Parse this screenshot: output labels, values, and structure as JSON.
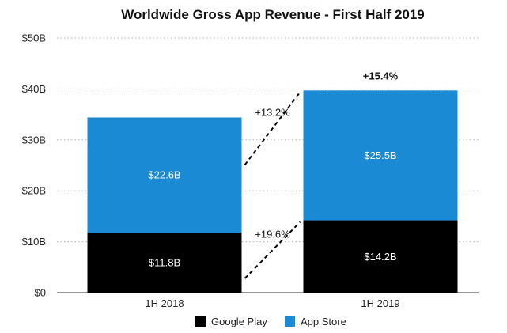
{
  "chart_data": {
    "type": "bar",
    "stacked": true,
    "title": "Worldwide Gross App Revenue - First Half 2019",
    "xlabel": "",
    "ylabel": "",
    "ylim": [
      0,
      50
    ],
    "y_ticks": [
      0,
      10,
      20,
      30,
      40,
      50
    ],
    "y_tick_labels": [
      "$0",
      "$10B",
      "$20B",
      "$30B",
      "$40B",
      "$50B"
    ],
    "grid": true,
    "legend_position": "bottom",
    "categories": [
      "1H 2018",
      "1H 2019"
    ],
    "series": [
      {
        "name": "Google Play",
        "color": "#000000",
        "values": [
          11.8,
          14.2
        ],
        "labels": [
          "$11.8B",
          "$14.2B"
        ],
        "growth": "+19.6%"
      },
      {
        "name": "App Store",
        "color": "#1a8ad4",
        "values": [
          22.6,
          25.5
        ],
        "labels": [
          "$22.6B",
          "$25.5B"
        ],
        "growth": "+13.2%"
      }
    ],
    "total_growth": "+15.4%"
  }
}
